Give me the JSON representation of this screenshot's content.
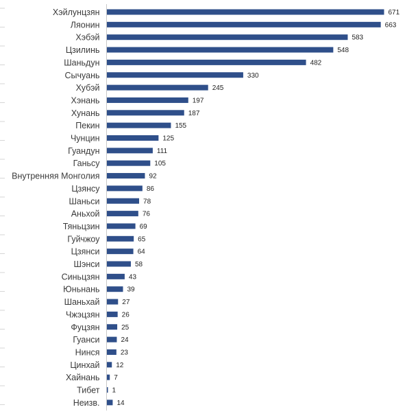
{
  "chart_data": {
    "type": "bar",
    "orientation": "horizontal",
    "title": "",
    "xlabel": "",
    "ylabel": "",
    "grid": false,
    "legend": "none",
    "xlim": [
      0,
      671
    ],
    "bar_color": "#2f4f8a",
    "categories": [
      "Хэйлунцзян",
      "Ляонин",
      "Хэбэй",
      "Цзилинь",
      "Шаньдун",
      "Сычуань",
      "Хубэй",
      "Хэнань",
      "Хунань",
      "Пекин",
      "Чунцин",
      "Гуандун",
      "Ганьсу",
      "Внутренняя Монголия",
      "Цзянсу",
      "Шаньси",
      "Аньхой",
      "Тяньцзин",
      "Гуйчжоу",
      "Цзянси",
      "Шэнси",
      "Синьцзян",
      "Юньнань",
      "Шаньхай",
      "Чжэцзян",
      "Фуцзян",
      "Гуанси",
      "Нинся",
      "Цинхай",
      "Хайнань",
      "Тибет",
      "Неизв."
    ],
    "values": [
      671,
      663,
      583,
      548,
      482,
      330,
      245,
      197,
      187,
      155,
      125,
      111,
      105,
      92,
      86,
      78,
      76,
      69,
      65,
      64,
      58,
      43,
      39,
      27,
      26,
      25,
      24,
      23,
      12,
      7,
      1,
      14
    ]
  }
}
